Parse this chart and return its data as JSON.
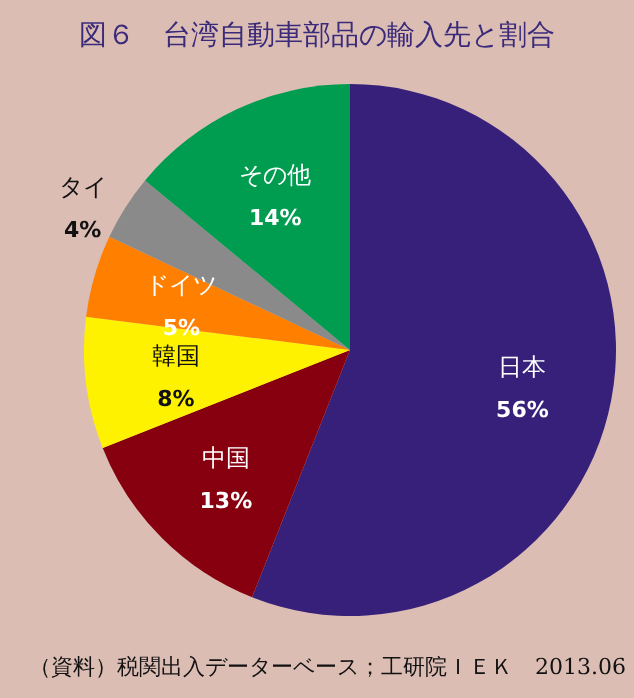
{
  "chart_data": {
    "type": "pie",
    "title": "図６　台湾自動車部品の輸入先と割合",
    "categories": [
      "日本",
      "中国",
      "韓国",
      "ドイツ",
      "タイ",
      "その他"
    ],
    "values": [
      56,
      13,
      8,
      5,
      4,
      14
    ],
    "value_labels": [
      "56%",
      "13%",
      "8%",
      "5%",
      "4%",
      "14%"
    ],
    "colors": [
      "#36207a",
      "#860010",
      "#fff200",
      "#ff8000",
      "#8a8a8a",
      "#009c50"
    ],
    "annotations": [
      "（資料）税関出入データーベース；工研院ＩＥＫ　2013.06"
    ],
    "legend": false
  }
}
